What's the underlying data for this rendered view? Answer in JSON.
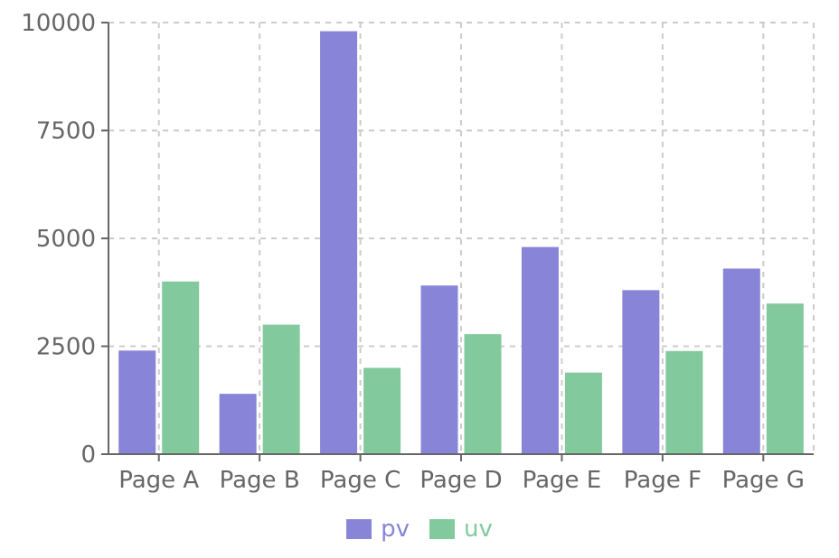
{
  "chart_data": {
    "type": "bar",
    "categories": [
      "Page A",
      "Page B",
      "Page C",
      "Page D",
      "Page E",
      "Page F",
      "Page G"
    ],
    "series": [
      {
        "name": "pv",
        "color": "#8884d8",
        "values": [
          2400,
          1398,
          9800,
          3908,
          4800,
          3800,
          4300
        ]
      },
      {
        "name": "uv",
        "color": "#82ca9d",
        "values": [
          4000,
          3000,
          2000,
          2780,
          1890,
          2390,
          3490
        ]
      }
    ],
    "yticks": [
      "0",
      "2500",
      "5000",
      "7500",
      "10000"
    ],
    "ylim": [
      0,
      10000
    ],
    "grid": true,
    "legend_position": "bottom-center"
  }
}
